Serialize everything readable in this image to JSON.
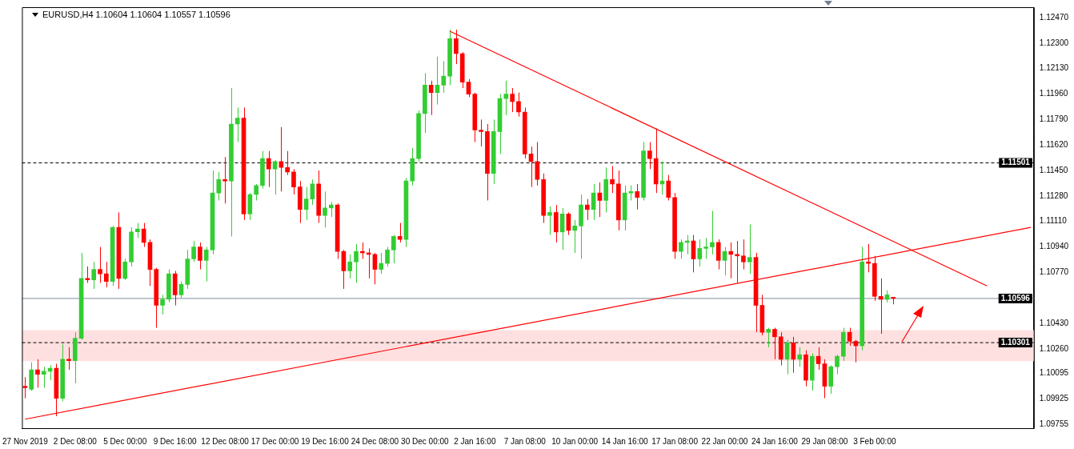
{
  "chart_data": {
    "type": "candlestick",
    "title": "EURUSD,H4  1.10604 1.10604 1.10557 1.10596",
    "categories": [
      "27 Nov 2019",
      null,
      null,
      null,
      null,
      null,
      null,
      null,
      "2 Dec 08:00",
      null,
      null,
      null,
      null,
      null,
      null,
      null,
      "5 Dec 00:00",
      null,
      null,
      null,
      null,
      null,
      null,
      null,
      "9 Dec 16:00",
      null,
      null,
      null,
      null,
      null,
      null,
      null,
      "12 Dec 08:00",
      null,
      null,
      null,
      null,
      null,
      null,
      null,
      "17 Dec 00:00",
      null,
      null,
      null,
      null,
      null,
      null,
      null,
      "19 Dec 16:00",
      null,
      null,
      null,
      null,
      null,
      null,
      null,
      "24 Dec 08:00",
      null,
      null,
      null,
      null,
      null,
      null,
      null,
      "30 Dec 00:00",
      null,
      null,
      null,
      null,
      null,
      null,
      null,
      "2 Jan 16:00",
      null,
      null,
      null,
      null,
      null,
      null,
      null,
      "7 Jan 08:00",
      null,
      null,
      null,
      null,
      null,
      null,
      null,
      "10 Jan 00:00",
      null,
      null,
      null,
      null,
      null,
      null,
      null,
      "14 Jan 16:00",
      null,
      null,
      null,
      null,
      null,
      null,
      null,
      "17 Jan 08:00",
      null,
      null,
      null,
      null,
      null,
      null,
      null,
      "22 Jan 00:00",
      null,
      null,
      null,
      null,
      null,
      null,
      null,
      "24 Jan 16:00",
      null,
      null,
      null,
      null,
      null,
      null,
      null,
      "29 Jan 08:00",
      null,
      null,
      null,
      null,
      null,
      null,
      null,
      "3 Feb 00:00",
      null,
      null,
      null,
      null,
      null,
      null,
      null,
      null,
      null,
      null,
      null,
      null,
      null,
      null,
      null,
      null,
      null,
      null,
      null,
      null,
      null,
      null,
      null,
      null,
      null
    ],
    "ohlc": [
      [
        1.1001,
        1.1007,
        1.0993,
        1.1
      ],
      [
        1.0999,
        1.1017,
        1.0998,
        1.1012
      ],
      [
        1.1012,
        1.1019,
        1.1,
        1.1009
      ],
      [
        1.1009,
        1.1014,
        1.1,
        1.1011
      ],
      [
        1.1011,
        1.1015,
        1.1005,
        1.1013
      ],
      [
        1.1013,
        1.1016,
        1.0981,
        1.0993
      ],
      [
        1.0993,
        1.1029,
        1.0991,
        1.1019
      ],
      [
        1.1019,
        1.1027,
        1.1012,
        1.1018
      ],
      [
        1.1018,
        1.1037,
        1.1003,
        1.1033
      ],
      [
        1.1033,
        1.109,
        1.1032,
        1.1073
      ],
      [
        1.1073,
        1.1081,
        1.107,
        1.1072
      ],
      [
        1.1072,
        1.1084,
        1.1066,
        1.1079
      ],
      [
        1.1079,
        1.1094,
        1.107,
        1.1076
      ],
      [
        1.1076,
        1.1084,
        1.1067,
        1.1071
      ],
      [
        1.1071,
        1.1108,
        1.1068,
        1.1107
      ],
      [
        1.1107,
        1.1117,
        1.1066,
        1.1073
      ],
      [
        1.1073,
        1.1086,
        1.1072,
        1.1084
      ],
      [
        1.1084,
        1.1107,
        1.1081,
        1.1104
      ],
      [
        1.1104,
        1.111,
        1.11,
        1.1106
      ],
      [
        1.1106,
        1.111,
        1.1094,
        1.1097
      ],
      [
        1.1097,
        1.1099,
        1.1068,
        1.1079
      ],
      [
        1.1079,
        1.108,
        1.104,
        1.1055
      ],
      [
        1.1055,
        1.1062,
        1.1049,
        1.1059
      ],
      [
        1.1059,
        1.1079,
        1.1057,
        1.1076
      ],
      [
        1.1076,
        1.1078,
        1.1055,
        1.1062
      ],
      [
        1.1062,
        1.1071,
        1.106,
        1.1069
      ],
      [
        1.1069,
        1.1092,
        1.1066,
        1.1086
      ],
      [
        1.1086,
        1.1098,
        1.1084,
        1.1094
      ],
      [
        1.1094,
        1.1097,
        1.1079,
        1.1085
      ],
      [
        1.1085,
        1.1094,
        1.1071,
        1.1092
      ],
      [
        1.1092,
        1.1145,
        1.1089,
        1.113
      ],
      [
        1.113,
        1.1144,
        1.1125,
        1.1139
      ],
      [
        1.1139,
        1.1154,
        1.1123,
        1.1138
      ],
      [
        1.1138,
        1.12,
        1.1101,
        1.1176
      ],
      [
        1.1176,
        1.1187,
        1.1164,
        1.118
      ],
      [
        1.118,
        1.1187,
        1.1112,
        1.1116
      ],
      [
        1.1116,
        1.113,
        1.1112,
        1.1129
      ],
      [
        1.1129,
        1.1136,
        1.1125,
        1.1135
      ],
      [
        1.1135,
        1.1158,
        1.1133,
        1.1153
      ],
      [
        1.1153,
        1.1158,
        1.1134,
        1.1146
      ],
      [
        1.1146,
        1.1152,
        1.1129,
        1.1151
      ],
      [
        1.1151,
        1.1174,
        1.1131,
        1.1147
      ],
      [
        1.1147,
        1.1158,
        1.1142,
        1.1144
      ],
      [
        1.1144,
        1.1146,
        1.1129,
        1.1134
      ],
      [
        1.1134,
        1.1138,
        1.111,
        1.1119
      ],
      [
        1.1119,
        1.1134,
        1.1112,
        1.1126
      ],
      [
        1.1126,
        1.1139,
        1.1122,
        1.1136
      ],
      [
        1.1136,
        1.1145,
        1.111,
        1.1115
      ],
      [
        1.1115,
        1.1131,
        1.1107,
        1.112
      ],
      [
        1.112,
        1.1124,
        1.1114,
        1.1122
      ],
      [
        1.1122,
        1.1123,
        1.1086,
        1.1091
      ],
      [
        1.1091,
        1.1092,
        1.1066,
        1.1078
      ],
      [
        1.1078,
        1.1089,
        1.1073,
        1.1084
      ],
      [
        1.1084,
        1.1096,
        1.107,
        1.1091
      ],
      [
        1.1091,
        1.1097,
        1.1086,
        1.109
      ],
      [
        1.109,
        1.1093,
        1.1073,
        1.1089
      ],
      [
        1.1089,
        1.109,
        1.1069,
        1.1079
      ],
      [
        1.1079,
        1.109,
        1.1076,
        1.1083
      ],
      [
        1.1083,
        1.1094,
        1.1081,
        1.1092
      ],
      [
        1.1092,
        1.1102,
        1.1083,
        1.1101
      ],
      [
        1.1101,
        1.111,
        1.1097,
        1.1099
      ],
      [
        1.1099,
        1.114,
        1.1094,
        1.1138
      ],
      [
        1.1138,
        1.116,
        1.1135,
        1.1153
      ],
      [
        1.1153,
        1.1185,
        1.1151,
        1.1183
      ],
      [
        1.1183,
        1.121,
        1.117,
        1.1202
      ],
      [
        1.1202,
        1.1205,
        1.1182,
        1.1197
      ],
      [
        1.1197,
        1.1221,
        1.1189,
        1.1202
      ],
      [
        1.1202,
        1.1218,
        1.1197,
        1.1208
      ],
      [
        1.1208,
        1.1239,
        1.1202,
        1.1233
      ],
      [
        1.1233,
        1.1239,
        1.1216,
        1.1223
      ],
      [
        1.1223,
        1.1224,
        1.12,
        1.1204
      ],
      [
        1.1204,
        1.1206,
        1.1194,
        1.1196
      ],
      [
        1.1196,
        1.1197,
        1.1164,
        1.1172
      ],
      [
        1.1172,
        1.1179,
        1.1161,
        1.1171
      ],
      [
        1.1171,
        1.1176,
        1.1125,
        1.1143
      ],
      [
        1.1143,
        1.1179,
        1.1136,
        1.1171
      ],
      [
        1.1171,
        1.1196,
        1.1156,
        1.1193
      ],
      [
        1.1193,
        1.1205,
        1.1182,
        1.1196
      ],
      [
        1.1196,
        1.12,
        1.1184,
        1.1191
      ],
      [
        1.1191,
        1.1197,
        1.1181,
        1.1184
      ],
      [
        1.1184,
        1.1187,
        1.1153,
        1.1156
      ],
      [
        1.1156,
        1.1161,
        1.1134,
        1.1151
      ],
      [
        1.1151,
        1.1164,
        1.1135,
        1.1139
      ],
      [
        1.1139,
        1.1143,
        1.111,
        1.1115
      ],
      [
        1.1115,
        1.1121,
        1.1102,
        1.1117
      ],
      [
        1.1117,
        1.1122,
        1.1097,
        1.1104
      ],
      [
        1.1104,
        1.112,
        1.1092,
        1.1116
      ],
      [
        1.1116,
        1.1117,
        1.1102,
        1.1105
      ],
      [
        1.1105,
        1.1112,
        1.109,
        1.1108
      ],
      [
        1.1108,
        1.1129,
        1.1086,
        1.1122
      ],
      [
        1.1122,
        1.1126,
        1.1112,
        1.1119
      ],
      [
        1.1119,
        1.1136,
        1.1112,
        1.113
      ],
      [
        1.113,
        1.1137,
        1.1114,
        1.1125
      ],
      [
        1.1125,
        1.1147,
        1.1117,
        1.1139
      ],
      [
        1.1139,
        1.1148,
        1.113,
        1.1136
      ],
      [
        1.1136,
        1.1145,
        1.1105,
        1.1112
      ],
      [
        1.1112,
        1.1135,
        1.1105,
        1.113
      ],
      [
        1.113,
        1.1135,
        1.1125,
        1.1131
      ],
      [
        1.1131,
        1.1136,
        1.1119,
        1.1127
      ],
      [
        1.1127,
        1.1164,
        1.1125,
        1.1158
      ],
      [
        1.1158,
        1.1164,
        1.1146,
        1.1153
      ],
      [
        1.1153,
        1.1173,
        1.113,
        1.1136
      ],
      [
        1.1136,
        1.1151,
        1.1129,
        1.1138
      ],
      [
        1.1138,
        1.1142,
        1.1125,
        1.1127
      ],
      [
        1.1127,
        1.113,
        1.1086,
        1.1091
      ],
      [
        1.1091,
        1.1099,
        1.1086,
        1.1097
      ],
      [
        1.1097,
        1.1102,
        1.1089,
        1.1098
      ],
      [
        1.1098,
        1.1102,
        1.1077,
        1.1086
      ],
      [
        1.1086,
        1.1099,
        1.1081,
        1.1093
      ],
      [
        1.1093,
        1.11,
        1.1086,
        1.1094
      ],
      [
        1.1094,
        1.1118,
        1.1089,
        1.1097
      ],
      [
        1.1097,
        1.1099,
        1.1079,
        1.1085
      ],
      [
        1.1085,
        1.1094,
        1.1075,
        1.1091
      ],
      [
        1.1091,
        1.1097,
        1.1073,
        1.1089
      ],
      [
        1.1089,
        1.1098,
        1.107,
        1.1088
      ],
      [
        1.1088,
        1.1099,
        1.1079,
        1.1084
      ],
      [
        1.1084,
        1.1109,
        1.1076,
        1.1087
      ],
      [
        1.1087,
        1.109,
        1.1037,
        1.1055
      ],
      [
        1.1055,
        1.1062,
        1.1035,
        1.1037
      ],
      [
        1.1037,
        1.104,
        1.1027,
        1.1039
      ],
      [
        1.1039,
        1.104,
        1.1019,
        1.1034
      ],
      [
        1.1034,
        1.1037,
        1.1015,
        1.1019
      ],
      [
        1.1019,
        1.1032,
        1.1009,
        1.103
      ],
      [
        1.103,
        1.1034,
        1.101,
        1.1019
      ],
      [
        1.1019,
        1.1027,
        1.1014,
        1.1022
      ],
      [
        1.1022,
        1.1025,
        1.1001,
        1.1005
      ],
      [
        1.1005,
        1.1023,
        1.0998,
        1.1021
      ],
      [
        1.1021,
        1.1027,
        1.1012,
        1.1016
      ],
      [
        1.1016,
        1.1019,
        1.0993,
        1.1001
      ],
      [
        1.1001,
        1.1015,
        1.0996,
        1.1014
      ],
      [
        1.1014,
        1.1022,
        1.1009,
        1.1021
      ],
      [
        1.1021,
        1.104,
        1.1018,
        1.1037
      ],
      [
        1.1037,
        1.104,
        1.1028,
        1.1031
      ],
      [
        1.1031,
        1.1032,
        1.1017,
        1.1028
      ],
      [
        1.1028,
        1.1094,
        1.1025,
        1.1084
      ],
      [
        1.1084,
        1.1096,
        1.1077,
        1.1083
      ],
      [
        1.1083,
        1.1088,
        1.1058,
        1.1061
      ],
      [
        1.1061,
        1.1073,
        1.1036,
        1.1059
      ],
      [
        1.1059,
        1.1065,
        1.1057,
        1.1062
      ],
      [
        1.10604,
        1.10604,
        1.10557,
        1.10596
      ],
      null,
      null,
      null,
      null,
      null,
      null,
      null,
      null,
      null,
      null,
      null,
      null,
      null,
      null,
      null,
      null,
      null,
      null,
      null,
      null,
      null,
      null
    ],
    "colors": [
      "#ff0000",
      "#32cd32",
      "#ff0000",
      "#32cd32",
      "#32cd32",
      "#ff0000",
      "#32cd32",
      "#ff0000",
      "#32cd32",
      "#32cd32",
      "#ff0000",
      "#32cd32",
      "#ff0000",
      "#ff0000",
      "#32cd32",
      "#ff0000",
      "#32cd32",
      "#32cd32",
      "#32cd32",
      "#ff0000",
      "#ff0000",
      "#ff0000",
      "#32cd32",
      "#32cd32",
      "#ff0000",
      "#32cd32",
      "#32cd32",
      "#32cd32",
      "#ff0000",
      "#32cd32",
      "#32cd32",
      "#32cd32",
      "#ff0000",
      "#32cd32",
      "#32cd32",
      "#ff0000",
      "#32cd32",
      "#32cd32",
      "#32cd32",
      "#ff0000",
      "#32cd32",
      "#ff0000",
      "#ff0000",
      "#ff0000",
      "#ff0000",
      "#32cd32",
      "#32cd32",
      "#ff0000",
      "#32cd32",
      "#32cd32",
      "#ff0000",
      "#ff0000",
      "#32cd32",
      "#32cd32",
      "#ff0000",
      "#ff0000",
      "#ff0000",
      "#32cd32",
      "#32cd32",
      "#32cd32",
      "#ff0000",
      "#32cd32",
      "#32cd32",
      "#32cd32",
      "#32cd32",
      "#ff0000",
      "#32cd32",
      "#32cd32",
      "#32cd32",
      "#ff0000",
      "#ff0000",
      "#ff0000",
      "#ff0000",
      "#ff0000",
      "#ff0000",
      "#32cd32",
      "#32cd32",
      "#32cd32",
      "#ff0000",
      "#ff0000",
      "#ff0000",
      "#ff0000",
      "#ff0000",
      "#ff0000",
      "#32cd32",
      "#ff0000",
      "#32cd32",
      "#ff0000",
      "#32cd32",
      "#32cd32",
      "#ff0000",
      "#32cd32",
      "#ff0000",
      "#32cd32",
      "#ff0000",
      "#ff0000",
      "#32cd32",
      "#32cd32",
      "#ff0000",
      "#32cd32",
      "#ff0000",
      "#ff0000",
      "#32cd32",
      "#ff0000",
      "#ff0000",
      "#32cd32",
      "#32cd32",
      "#ff0000",
      "#32cd32",
      "#32cd32",
      "#32cd32",
      "#ff0000",
      "#32cd32",
      "#ff0000",
      "#ff0000",
      "#ff0000",
      "#32cd32",
      "#ff0000",
      "#ff0000",
      "#32cd32",
      "#ff0000",
      "#ff0000",
      "#32cd32",
      "#ff0000",
      "#32cd32",
      "#ff0000",
      "#32cd32",
      "#ff0000",
      "#ff0000",
      "#32cd32",
      "#32cd32",
      "#32cd32",
      "#ff0000",
      "#ff0000",
      "#32cd32",
      "#ff0000",
      "#ff0000",
      "#ff0000",
      "#32cd32",
      "#ff0000",
      null,
      null,
      null,
      null,
      null,
      null,
      null,
      null,
      null,
      null,
      null,
      null,
      null,
      null,
      null,
      null,
      null,
      null,
      null,
      null,
      null,
      null
    ],
    "series": [
      {
        "type": "line",
        "color": "#ff0000",
        "values": [
          1.0979,
          null,
          null,
          null,
          null,
          null,
          null,
          null,
          null,
          null,
          null,
          null,
          null,
          null,
          null,
          null,
          null,
          null,
          null,
          null,
          null,
          null,
          null,
          null,
          null,
          null,
          null,
          null,
          null,
          null,
          null,
          null,
          null,
          null,
          null,
          null,
          null,
          null,
          null,
          null,
          null,
          null,
          null,
          null,
          null,
          null,
          null,
          null,
          null,
          null,
          null,
          null,
          null,
          null,
          null,
          null,
          null,
          null,
          null,
          null,
          null,
          null,
          null,
          null,
          null,
          null,
          null,
          null,
          null,
          null,
          null,
          null,
          null,
          null,
          null,
          null,
          null,
          null,
          null,
          null,
          null,
          null,
          null,
          null,
          null,
          null,
          null,
          null,
          null,
          null,
          null,
          null,
          null,
          null,
          null,
          null,
          null,
          null,
          null,
          null,
          null,
          null,
          null,
          null,
          null,
          null,
          null,
          null,
          null,
          null,
          null,
          null,
          null,
          null,
          null,
          null,
          null,
          null,
          null,
          null,
          null,
          null,
          null,
          null,
          null,
          null,
          null,
          null,
          null,
          null,
          null,
          null,
          null,
          null,
          null,
          null,
          null,
          null,
          null,
          null,
          null,
          null,
          null,
          null,
          null,
          null,
          null,
          null,
          null,
          null,
          null,
          null,
          null,
          null,
          null,
          null,
          null,
          null,
          null,
          null,
          null,
          1.1107
        ]
      },
      {
        "type": "line",
        "color": "#ff0000",
        "values": [
          null,
          null,
          null,
          null,
          null,
          null,
          null,
          null,
          null,
          null,
          null,
          null,
          null,
          null,
          null,
          null,
          null,
          null,
          null,
          null,
          null,
          null,
          null,
          null,
          null,
          null,
          null,
          null,
          null,
          null,
          null,
          null,
          null,
          null,
          null,
          null,
          null,
          null,
          null,
          null,
          null,
          null,
          null,
          null,
          null,
          null,
          null,
          null,
          null,
          null,
          null,
          null,
          null,
          null,
          null,
          null,
          null,
          null,
          null,
          null,
          null,
          null,
          null,
          null,
          null,
          null,
          null,
          null,
          1.1238,
          null,
          null,
          null,
          null,
          null,
          null,
          null,
          null,
          null,
          null,
          null,
          null,
          null,
          null,
          null,
          null,
          null,
          null,
          null,
          null,
          null,
          null,
          null,
          null,
          null,
          null,
          null,
          null,
          null,
          null,
          null,
          null,
          null,
          null,
          null,
          null,
          null,
          null,
          null,
          null,
          null,
          null,
          null,
          null,
          null,
          null,
          null,
          null,
          null,
          null,
          null,
          null,
          null,
          null,
          null,
          null,
          null,
          null,
          null,
          null,
          null,
          null,
          null,
          null,
          null,
          null,
          null,
          null,
          null,
          null,
          null,
          null,
          null,
          null,
          null,
          null,
          null,
          null,
          null,
          null,
          null,
          null,
          null,
          null,
          null,
          1.1068,
          null,
          null,
          null,
          null,
          null,
          null,
          null
        ]
      }
    ],
    "ylim": [
      1.0973,
      1.1254
    ],
    "yticks": [
      {
        "value": 1.1247,
        "label": "1.12470"
      },
      {
        "value": 1.123,
        "label": "1.12300"
      },
      {
        "value": 1.1213,
        "label": "1.12130"
      },
      {
        "value": 1.1196,
        "label": "1.11960"
      },
      {
        "value": 1.1179,
        "label": "1.11790"
      },
      {
        "value": 1.1162,
        "label": "1.11620"
      },
      {
        "value": 1.1145,
        "label": "1.11450"
      },
      {
        "value": 1.1128,
        "label": "1.11280"
      },
      {
        "value": 1.1111,
        "label": "1.11110"
      },
      {
        "value": 1.1094,
        "label": "1.10940"
      },
      {
        "value": 1.1077,
        "label": "1.10770"
      },
      {
        "value": 1.1043,
        "label": "1.10430"
      },
      {
        "value": 1.1026,
        "label": "1.10260"
      },
      {
        "value": 1.10095,
        "label": "1.10095"
      },
      {
        "value": 1.09925,
        "label": "1.09925"
      },
      {
        "value": 1.09755,
        "label": "1.09755"
      }
    ],
    "ref_lines": [
      {
        "axis": "y",
        "value": 1.11501,
        "label": "1.11501",
        "color": "#000000",
        "line_style": "dashed"
      },
      {
        "axis": "y",
        "value": 1.10301,
        "label": "1.10301",
        "color": "#000000",
        "line_style": "dashed"
      },
      {
        "axis": "y",
        "value": 1.10596,
        "label": "1.10596",
        "color": "#8090a0",
        "line_style": "solid"
      }
    ],
    "bands": [
      {
        "axis": "y",
        "from": 1.10178,
        "to": 1.10384,
        "color": "#ffe0e0"
      }
    ]
  }
}
